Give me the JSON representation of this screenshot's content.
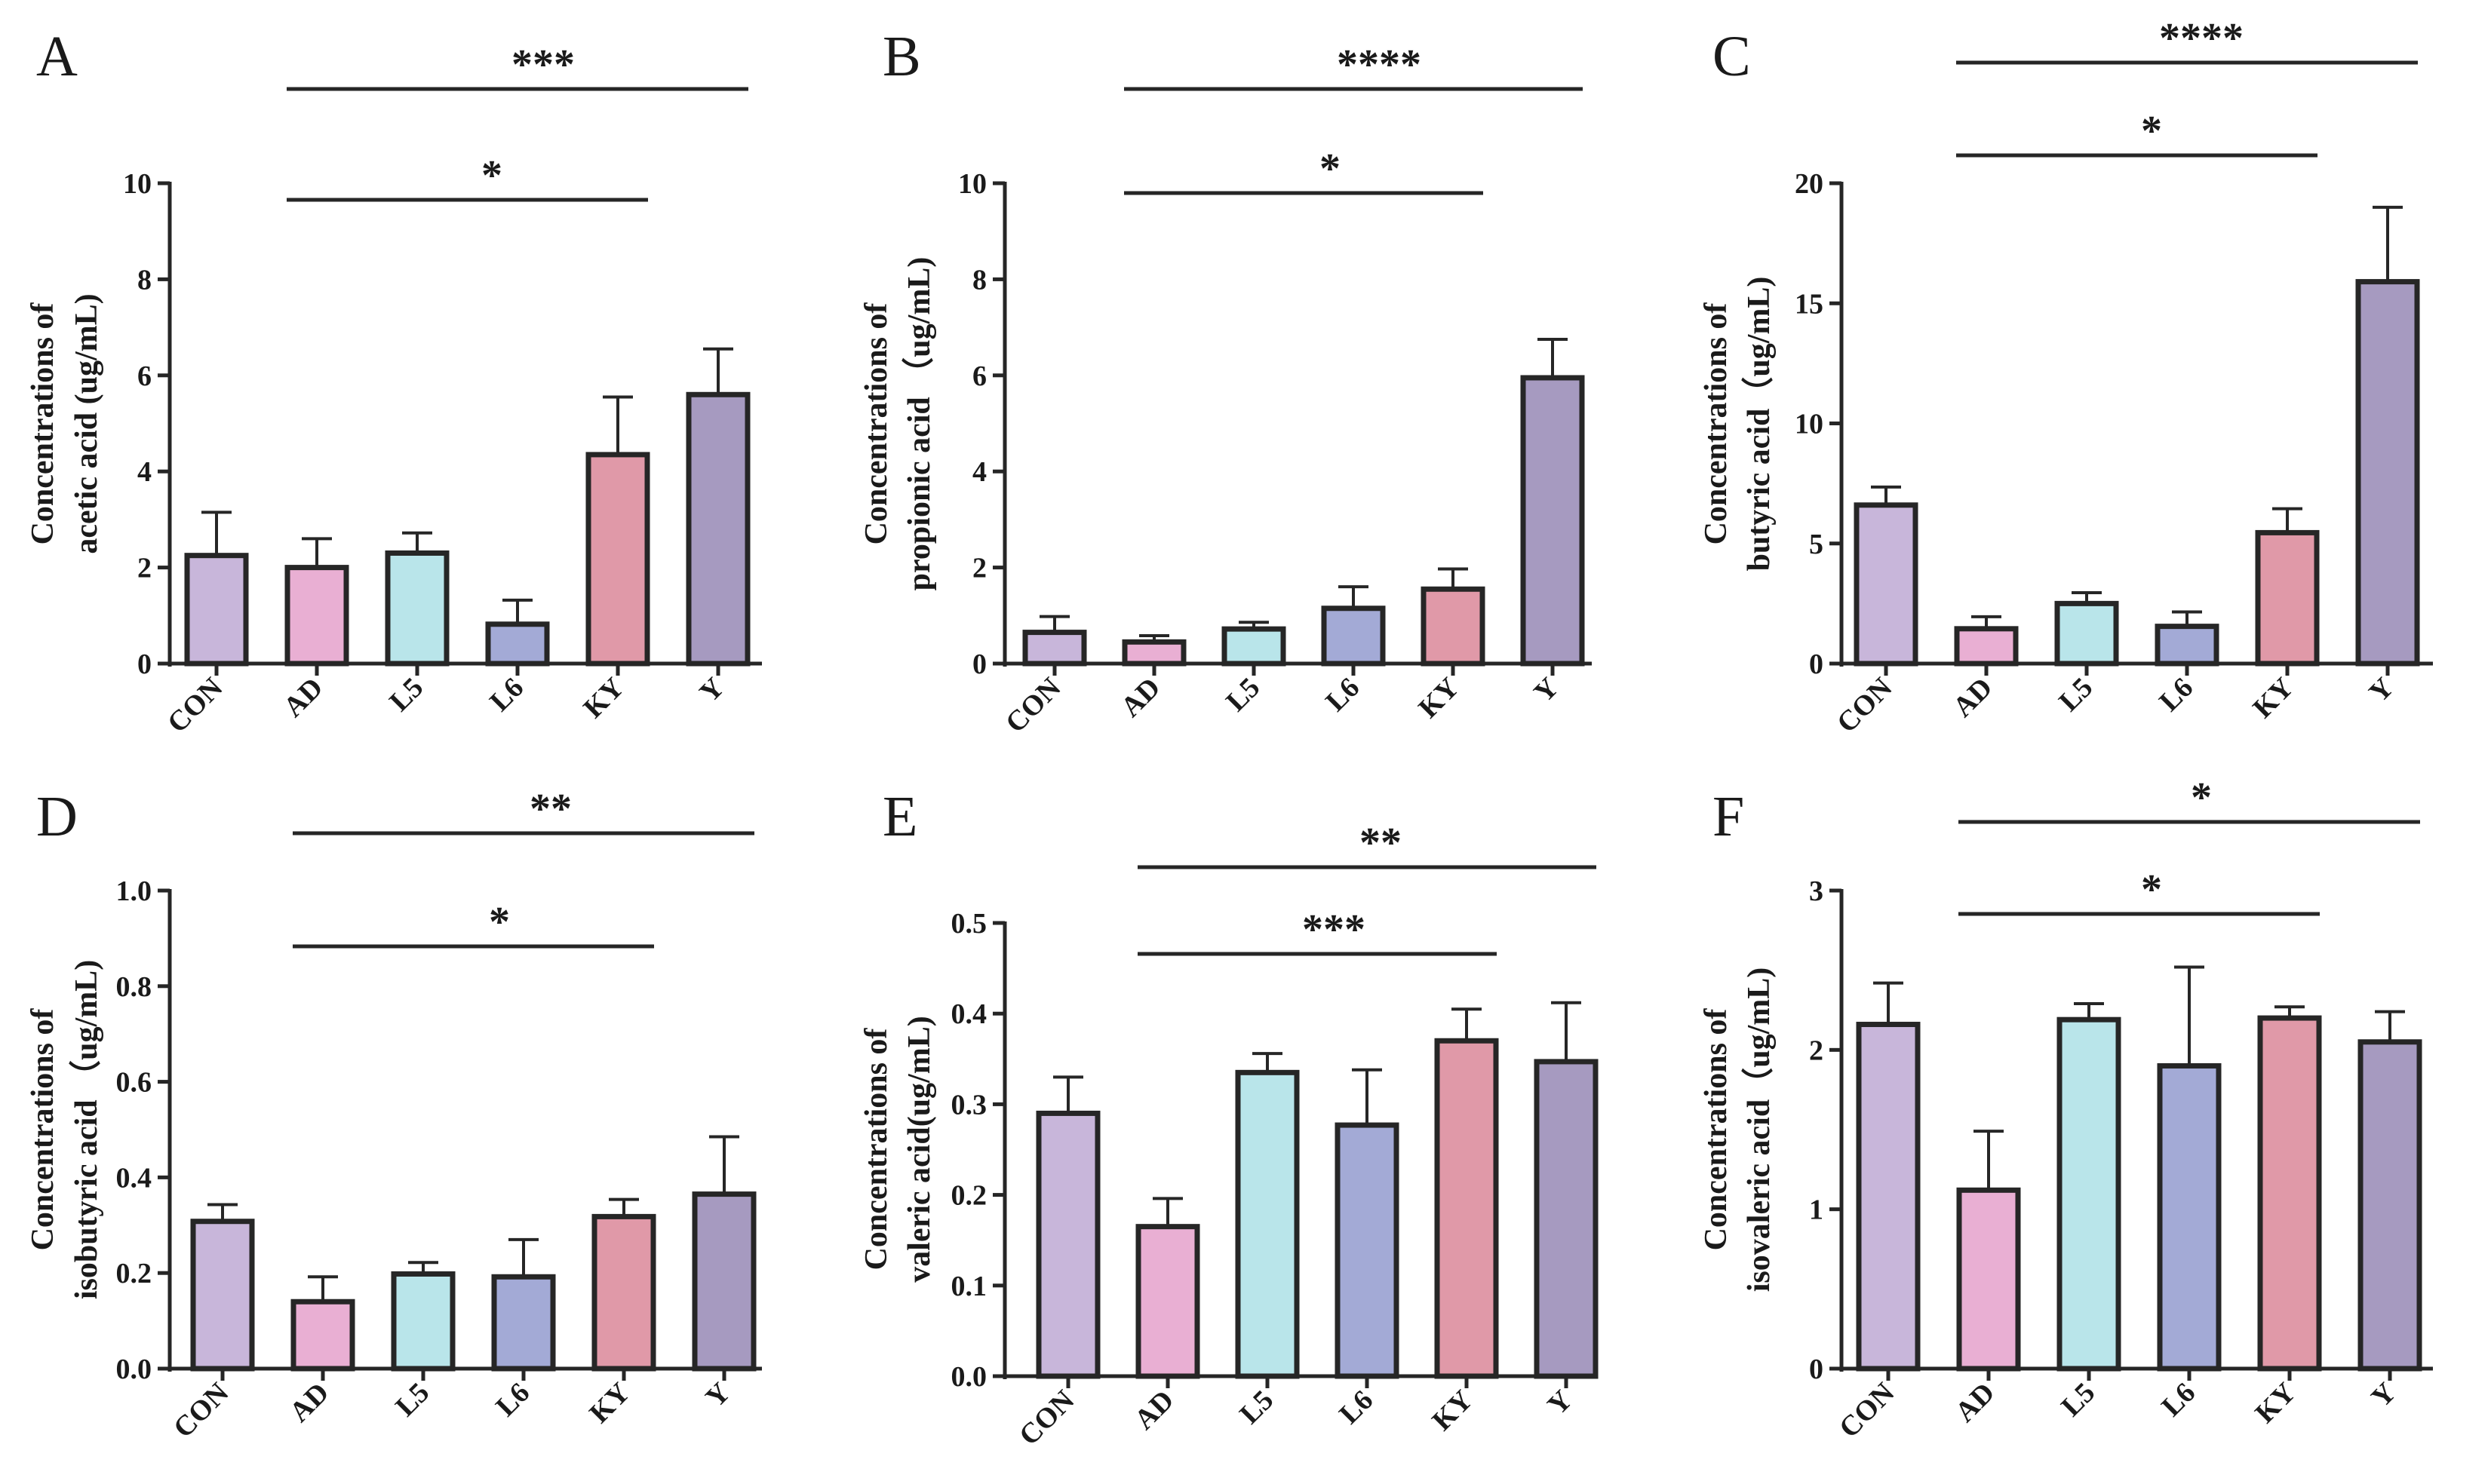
{
  "chart_data": [
    {
      "type": "bar",
      "panel": "A",
      "ylabel": [
        "Concentrations of",
        "acetic acid (ug/mL)"
      ],
      "categories": [
        "CON",
        "AD",
        "L5",
        "L6",
        "KY",
        "Y"
      ],
      "values": [
        2.25,
        2.0,
        2.3,
        0.82,
        4.35,
        5.6
      ],
      "errors": [
        0.9,
        0.6,
        0.42,
        0.5,
        1.2,
        0.95
      ],
      "colors": [
        "#c8b6da",
        "#e9afd3",
        "#b9e5ea",
        "#a3aad6",
        "#e099a8",
        "#a69ac0"
      ],
      "ylim": [
        0,
        10
      ],
      "yticks": [
        0,
        2,
        4,
        6,
        8,
        10
      ],
      "ytick_labels": [
        "0",
        "2",
        "4",
        "6",
        "8",
        "10"
      ],
      "significance": [
        {
          "from": "AD",
          "to": "KY",
          "label": "*"
        },
        {
          "from": "AD",
          "to": "Y",
          "label": "***"
        }
      ]
    },
    {
      "type": "bar",
      "panel": "B",
      "ylabel": [
        "Concentrations of",
        "propionic acid （ug/mL)"
      ],
      "categories": [
        "CON",
        "AD",
        "L5",
        "L6",
        "KY",
        "Y"
      ],
      "values": [
        0.65,
        0.45,
        0.72,
        1.15,
        1.55,
        5.95
      ],
      "errors": [
        0.33,
        0.13,
        0.14,
        0.45,
        0.42,
        0.8
      ],
      "colors": [
        "#c8b6da",
        "#e9afd3",
        "#b9e5ea",
        "#a3aad6",
        "#e099a8",
        "#a69ac0"
      ],
      "ylim": [
        0,
        10
      ],
      "yticks": [
        0,
        2,
        4,
        6,
        8,
        10
      ],
      "ytick_labels": [
        "0",
        "2",
        "4",
        "6",
        "8",
        "10"
      ],
      "significance": [
        {
          "from": "AD",
          "to": "KY",
          "label": "*"
        },
        {
          "from": "AD",
          "to": "Y",
          "label": "****"
        }
      ]
    },
    {
      "type": "bar",
      "panel": "C",
      "ylabel": [
        "Concentrations of",
        "butyric acid（ug/mL)"
      ],
      "categories": [
        "CON",
        "AD",
        "L5",
        "L6",
        "KY",
        "Y"
      ],
      "values": [
        6.6,
        1.45,
        2.5,
        1.55,
        5.45,
        15.9
      ],
      "errors": [
        0.75,
        0.5,
        0.45,
        0.6,
        1.0,
        3.1
      ],
      "colors": [
        "#c8b6da",
        "#e9afd3",
        "#b9e5ea",
        "#a3aad6",
        "#e099a8",
        "#a69ac0"
      ],
      "ylim": [
        0,
        20
      ],
      "yticks": [
        0,
        5,
        10,
        15,
        20
      ],
      "ytick_labels": [
        "0",
        "5",
        "10",
        "15",
        "20"
      ],
      "significance": [
        {
          "from": "AD",
          "to": "KY",
          "label": "*"
        },
        {
          "from": "AD",
          "to": "Y",
          "label": "****"
        }
      ]
    },
    {
      "type": "bar",
      "panel": "D",
      "ylabel": [
        "Concentrations of",
        "isobutyric acid （ug/mL)"
      ],
      "categories": [
        "CON",
        "AD",
        "L5",
        "L6",
        "KY",
        "Y"
      ],
      "values": [
        0.308,
        0.14,
        0.198,
        0.192,
        0.318,
        0.365
      ],
      "errors": [
        0.035,
        0.052,
        0.024,
        0.078,
        0.036,
        0.12
      ],
      "colors": [
        "#c8b6da",
        "#e9afd3",
        "#b9e5ea",
        "#a3aad6",
        "#e099a8",
        "#a69ac0"
      ],
      "ylim": [
        0,
        1.0
      ],
      "yticks": [
        0,
        0.2,
        0.4,
        0.6,
        0.8,
        1.0
      ],
      "ytick_labels": [
        "0.0",
        "0.2",
        "0.4",
        "0.6",
        "0.8",
        "1.0"
      ],
      "significance": [
        {
          "from": "AD",
          "to": "KY",
          "label": "*"
        },
        {
          "from": "AD",
          "to": "Y",
          "label": "**"
        }
      ]
    },
    {
      "type": "bar",
      "panel": "E",
      "ylabel": [
        "Concentrations of",
        "valeric acid(ug/mL)"
      ],
      "categories": [
        "CON",
        "AD",
        "L5",
        "L6",
        "KY",
        "Y"
      ],
      "values": [
        0.29,
        0.165,
        0.335,
        0.277,
        0.37,
        0.347
      ],
      "errors": [
        0.04,
        0.031,
        0.021,
        0.061,
        0.035,
        0.065
      ],
      "colors": [
        "#c8b6da",
        "#e9afd3",
        "#b9e5ea",
        "#a3aad6",
        "#e099a8",
        "#a69ac0"
      ],
      "ylim": [
        0,
        0.5
      ],
      "yticks": [
        0,
        0.1,
        0.2,
        0.3,
        0.4,
        0.5
      ],
      "ytick_labels": [
        "0.0",
        "0.1",
        "0.2",
        "0.3",
        "0.4",
        "0.5"
      ],
      "significance": [
        {
          "from": "AD",
          "to": "KY",
          "label": "***"
        },
        {
          "from": "AD",
          "to": "Y",
          "label": "**"
        }
      ]
    },
    {
      "type": "bar",
      "panel": "F",
      "ylabel": [
        "Concentrations of",
        "isovaleric acid（ug/mL)"
      ],
      "categories": [
        "CON",
        "AD",
        "L5",
        "L6",
        "KY",
        "Y"
      ],
      "values": [
        2.16,
        1.12,
        2.19,
        1.9,
        2.2,
        2.05
      ],
      "errors": [
        0.26,
        0.37,
        0.1,
        0.62,
        0.07,
        0.19
      ],
      "colors": [
        "#c8b6da",
        "#e9afd3",
        "#b9e5ea",
        "#a3aad6",
        "#e099a8",
        "#a69ac0"
      ],
      "ylim": [
        0,
        3
      ],
      "yticks": [
        0,
        1,
        2,
        3
      ],
      "ytick_labels": [
        "0",
        "1",
        "2",
        "3"
      ],
      "significance": [
        {
          "from": "AD",
          "to": "KY",
          "label": "*"
        },
        {
          "from": "AD",
          "to": "Y",
          "label": "*"
        }
      ]
    }
  ]
}
